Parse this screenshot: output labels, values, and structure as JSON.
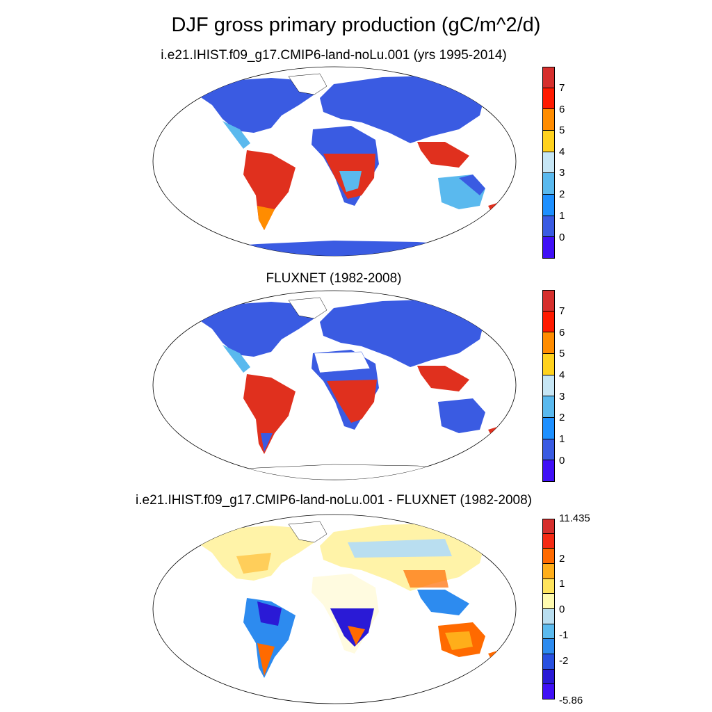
{
  "title": "DJF gross primary production (gC/m^2/d)",
  "panels": [
    {
      "title": "i.e21.IHIST.f09_g17.CMIP6-land-noLu.001 (yrs 1995-2014)",
      "colorbar": {
        "colors": [
          "#d62f2d",
          "#ff1a00",
          "#ff8c00",
          "#ffd21e",
          "#c6e6f5",
          "#5ab9ee",
          "#1e90ff",
          "#3a5be2",
          "#4010f6"
        ],
        "ticks": [
          "7",
          "6",
          "5",
          "4",
          "3",
          "2",
          "1",
          "0"
        ]
      }
    },
    {
      "title": "FLUXNET (1982-2008)",
      "colorbar": {
        "colors": [
          "#d62f2d",
          "#ff1a00",
          "#ff8c00",
          "#ffd21e",
          "#c6e6f5",
          "#5ab9ee",
          "#1e90ff",
          "#3a5be2",
          "#4010f6"
        ],
        "ticks": [
          "7",
          "6",
          "5",
          "4",
          "3",
          "2",
          "1",
          "0"
        ]
      }
    },
    {
      "title": "i.e21.IHIST.f09_g17.CMIP6-land-noLu.001 - FLUXNET (1982-2008)",
      "colorbar": {
        "colors": [
          "#d62f2d",
          "#f52a13",
          "#ff6a00",
          "#ffae1a",
          "#ffe45c",
          "#fffbb0",
          "#b9def0",
          "#5bbaee",
          "#2d8bef",
          "#2850e0",
          "#2a1ad6",
          "#4010f6"
        ],
        "ticks": [
          "11.435",
          "2",
          "1",
          "0",
          "-1",
          "-2",
          "-5.86"
        ]
      }
    }
  ],
  "legend_colors": {
    "low": "#3a5be2",
    "tropics": "#e0301e",
    "mid": "#5ab9ee",
    "yellow": "#ffd21e",
    "diff_neutral": "#fff3a8",
    "diff_neg": "#2a1ad6",
    "diff_neg_light": "#b9def0"
  }
}
